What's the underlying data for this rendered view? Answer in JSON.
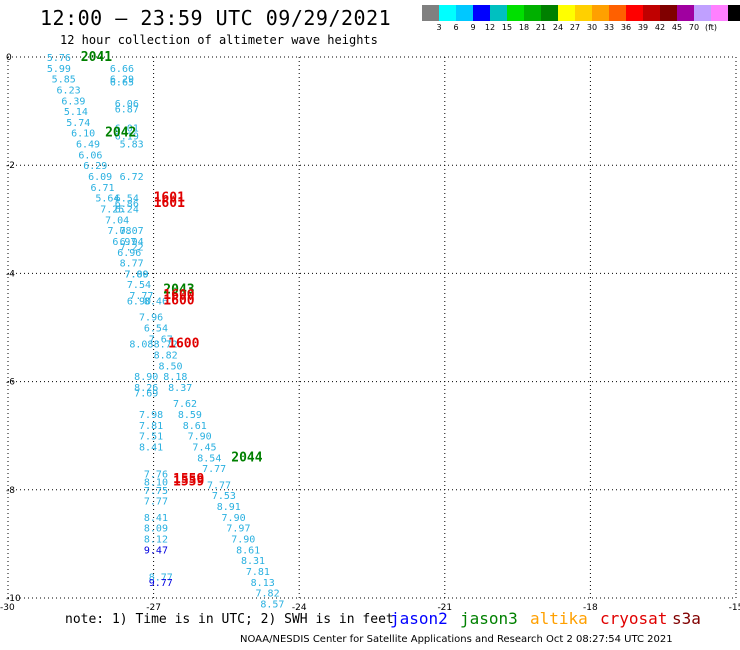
{
  "title": "12:00 — 23:59 UTC 09/29/2021",
  "subtitle": "12 hour collection of altimeter wave heights",
  "colorbar": {
    "colors": [
      "#808080",
      "#00ffff",
      "#00c8ff",
      "#0000ff",
      "#00c0c0",
      "#00e000",
      "#00b000",
      "#008000",
      "#ffff00",
      "#ffd000",
      "#ffa000",
      "#ff6000",
      "#ff0000",
      "#c00000",
      "#800000",
      "#a000a0",
      "#c0a0ff",
      "#ff80ff",
      "#000000"
    ],
    "labels": [
      "3",
      "6",
      "9",
      "12",
      "15",
      "18",
      "21",
      "24",
      "27",
      "30",
      "33",
      "36",
      "39",
      "42",
      "45",
      "70",
      "(ft)"
    ]
  },
  "map": {
    "lon_ticks": [
      "-30",
      "-27",
      "-24",
      "-21",
      "-18",
      "-15"
    ],
    "lat_ticks": [
      "0",
      "-2",
      "-4",
      "-6",
      "-8",
      "-10"
    ],
    "lon_range": [
      -30,
      -15
    ],
    "lat_range": [
      -10,
      0
    ]
  },
  "observations": [
    {
      "lon": -29.2,
      "lat": 0.0,
      "v": "5.76",
      "c": "#29b0e0"
    },
    {
      "lon": -29.2,
      "lat": -0.2,
      "v": "5.99",
      "c": "#29b0e0"
    },
    {
      "lon": -29.1,
      "lat": -0.4,
      "v": "5.85",
      "c": "#29b0e0"
    },
    {
      "lon": -29.0,
      "lat": -0.6,
      "v": "6.23",
      "c": "#29b0e0"
    },
    {
      "lon": -28.9,
      "lat": -0.8,
      "v": "6.39",
      "c": "#29b0e0"
    },
    {
      "lon": -28.85,
      "lat": -1.0,
      "v": "5.14",
      "c": "#29b0e0"
    },
    {
      "lon": -28.8,
      "lat": -1.2,
      "v": "5.74",
      "c": "#29b0e0"
    },
    {
      "lon": -28.7,
      "lat": -1.4,
      "v": "6.10",
      "c": "#29b0e0"
    },
    {
      "lon": -28.6,
      "lat": -1.6,
      "v": "6.49",
      "c": "#29b0e0"
    },
    {
      "lon": -28.55,
      "lat": -1.8,
      "v": "6.06",
      "c": "#29b0e0"
    },
    {
      "lon": -28.45,
      "lat": -2.0,
      "v": "6.29",
      "c": "#29b0e0"
    },
    {
      "lon": -28.35,
      "lat": -2.2,
      "v": "6.09",
      "c": "#29b0e0"
    },
    {
      "lon": -28.3,
      "lat": -2.4,
      "v": "6.71",
      "c": "#29b0e0"
    },
    {
      "lon": -28.2,
      "lat": -2.6,
      "v": "5.64",
      "c": "#29b0e0"
    },
    {
      "lon": -28.1,
      "lat": -2.8,
      "v": "7.25",
      "c": "#29b0e0"
    },
    {
      "lon": -28.0,
      "lat": -3.0,
      "v": "7.04",
      "c": "#29b0e0"
    },
    {
      "lon": -27.95,
      "lat": -3.2,
      "v": "7.08",
      "c": "#29b0e0"
    },
    {
      "lon": -27.85,
      "lat": -3.4,
      "v": "6.97",
      "c": "#29b0e0"
    },
    {
      "lon": -27.75,
      "lat": -3.6,
      "v": "6.96",
      "c": "#29b0e0"
    },
    {
      "lon": -27.7,
      "lat": -3.8,
      "v": "8.77",
      "c": "#29b0e0"
    },
    {
      "lon": -27.6,
      "lat": -4.0,
      "v": "7.80",
      "c": "#29b0e0"
    },
    {
      "lon": -27.55,
      "lat": -4.2,
      "v": "7.54",
      "c": "#29b0e0"
    },
    {
      "lon": -27.5,
      "lat": -4.4,
      "v": "7.77",
      "c": "#29b0e0"
    },
    {
      "lon": -27.55,
      "lat": -4.5,
      "v": "6.90",
      "c": "#29b0e0"
    },
    {
      "lon": -27.3,
      "lat": -4.8,
      "v": "7.96",
      "c": "#29b0e0"
    },
    {
      "lon": -27.2,
      "lat": -5.0,
      "v": "6.54",
      "c": "#29b0e0"
    },
    {
      "lon": -27.1,
      "lat": -5.2,
      "v": "7.67",
      "c": "#29b0e0"
    },
    {
      "lon": -27.5,
      "lat": -5.3,
      "v": "8.08",
      "c": "#29b0e0"
    },
    {
      "lon": -27.0,
      "lat": -5.5,
      "v": "8.82",
      "c": "#29b0e0"
    },
    {
      "lon": -26.9,
      "lat": -5.7,
      "v": "8.50",
      "c": "#29b0e0"
    },
    {
      "lon": -26.8,
      "lat": -5.9,
      "v": "8.18",
      "c": "#29b0e0"
    },
    {
      "lon": -27.4,
      "lat": -5.9,
      "v": "8.90",
      "c": "#29b0e0"
    },
    {
      "lon": -26.7,
      "lat": -6.1,
      "v": "8.37",
      "c": "#29b0e0"
    },
    {
      "lon": -27.4,
      "lat": -6.1,
      "v": "8.26",
      "c": "#29b0e0"
    },
    {
      "lon": -27.4,
      "lat": -6.2,
      "v": "7.69",
      "c": "#29b0e0"
    },
    {
      "lon": -26.6,
      "lat": -6.4,
      "v": "7.62",
      "c": "#29b0e0"
    },
    {
      "lon": -26.5,
      "lat": -6.6,
      "v": "8.59",
      "c": "#29b0e0"
    },
    {
      "lon": -27.3,
      "lat": -6.6,
      "v": "7.98",
      "c": "#29b0e0"
    },
    {
      "lon": -26.4,
      "lat": -6.8,
      "v": "8.61",
      "c": "#29b0e0"
    },
    {
      "lon": -27.3,
      "lat": -6.8,
      "v": "7.81",
      "c": "#29b0e0"
    },
    {
      "lon": -26.3,
      "lat": -7.0,
      "v": "7.90",
      "c": "#29b0e0"
    },
    {
      "lon": -27.3,
      "lat": -7.0,
      "v": "7.51",
      "c": "#29b0e0"
    },
    {
      "lon": -26.2,
      "lat": -7.2,
      "v": "7.45",
      "c": "#29b0e0"
    },
    {
      "lon": -27.3,
      "lat": -7.2,
      "v": "8.41",
      "c": "#29b0e0"
    },
    {
      "lon": -26.1,
      "lat": -7.4,
      "v": "8.54",
      "c": "#29b0e0"
    },
    {
      "lon": -26.0,
      "lat": -7.6,
      "v": "7.77",
      "c": "#29b0e0"
    },
    {
      "lon": -27.2,
      "lat": -7.7,
      "v": "7.76",
      "c": "#29b0e0"
    },
    {
      "lon": -27.2,
      "lat": -7.85,
      "v": "8.10",
      "c": "#29b0e0"
    },
    {
      "lon": -25.9,
      "lat": -7.9,
      "v": "7.77",
      "c": "#29b0e0"
    },
    {
      "lon": -27.2,
      "lat": -8.0,
      "v": "7.75",
      "c": "#29b0e0"
    },
    {
      "lon": -25.8,
      "lat": -8.1,
      "v": "7.53",
      "c": "#29b0e0"
    },
    {
      "lon": -27.2,
      "lat": -8.2,
      "v": "7.77",
      "c": "#29b0e0"
    },
    {
      "lon": -25.7,
      "lat": -8.3,
      "v": "8.91",
      "c": "#29b0e0"
    },
    {
      "lon": -25.6,
      "lat": -8.5,
      "v": "7.90",
      "c": "#29b0e0"
    },
    {
      "lon": -27.2,
      "lat": -8.5,
      "v": "8.41",
      "c": "#29b0e0"
    },
    {
      "lon": -25.5,
      "lat": -8.7,
      "v": "7.97",
      "c": "#29b0e0"
    },
    {
      "lon": -27.2,
      "lat": -8.7,
      "v": "8.09",
      "c": "#29b0e0"
    },
    {
      "lon": -25.4,
      "lat": -8.9,
      "v": "7.90",
      "c": "#29b0e0"
    },
    {
      "lon": -27.2,
      "lat": -8.9,
      "v": "8.12",
      "c": "#29b0e0"
    },
    {
      "lon": -27.2,
      "lat": -9.1,
      "v": "9.47",
      "c": "#0000e0"
    },
    {
      "lon": -25.3,
      "lat": -9.1,
      "v": "8.61",
      "c": "#29b0e0"
    },
    {
      "lon": -25.2,
      "lat": -9.3,
      "v": "8.31",
      "c": "#29b0e0"
    },
    {
      "lon": -25.1,
      "lat": -9.5,
      "v": "7.81",
      "c": "#29b0e0"
    },
    {
      "lon": -27.1,
      "lat": -9.6,
      "v": "8.77",
      "c": "#29b0e0"
    },
    {
      "lon": -27.1,
      "lat": -9.7,
      "v": "9.77",
      "c": "#0000e0"
    },
    {
      "lon": -25.0,
      "lat": -9.7,
      "v": "8.13",
      "c": "#29b0e0"
    },
    {
      "lon": -24.9,
      "lat": -9.9,
      "v": "7.82",
      "c": "#29b0e0"
    },
    {
      "lon": -24.8,
      "lat": -10.1,
      "v": "8.57",
      "c": "#29b0e0"
    },
    {
      "lon": -27.9,
      "lat": -0.2,
      "v": "6.66",
      "c": "#29b0e0"
    },
    {
      "lon": -27.9,
      "lat": -0.4,
      "v": "6.29",
      "c": "#29b0e0"
    },
    {
      "lon": -27.9,
      "lat": -0.45,
      "v": "6.65",
      "c": "#29b0e0"
    },
    {
      "lon": -27.8,
      "lat": -0.85,
      "v": "6.06",
      "c": "#29b0e0"
    },
    {
      "lon": -27.8,
      "lat": -0.95,
      "v": "6.87",
      "c": "#29b0e0"
    },
    {
      "lon": -27.8,
      "lat": -1.3,
      "v": "6.01",
      "c": "#29b0e0"
    },
    {
      "lon": -27.8,
      "lat": -1.45,
      "v": "6.19",
      "c": "#29b0e0"
    },
    {
      "lon": -27.7,
      "lat": -1.6,
      "v": "5.83",
      "c": "#29b0e0"
    },
    {
      "lon": -27.7,
      "lat": -2.2,
      "v": "6.72",
      "c": "#29b0e0"
    },
    {
      "lon": -27.8,
      "lat": -2.6,
      "v": "6.54",
      "c": "#29b0e0"
    },
    {
      "lon": -27.8,
      "lat": -2.7,
      "v": "6.86",
      "c": "#29b0e0"
    },
    {
      "lon": -27.8,
      "lat": -2.8,
      "v": "6.24",
      "c": "#29b0e0"
    },
    {
      "lon": -27.7,
      "lat": -3.2,
      "v": "7.07",
      "c": "#29b0e0"
    },
    {
      "lon": -27.7,
      "lat": -3.4,
      "v": "6.94",
      "c": "#29b0e0"
    },
    {
      "lon": -27.7,
      "lat": -3.5,
      "v": "7.22",
      "c": "#29b0e0"
    },
    {
      "lon": -27.6,
      "lat": -4.0,
      "v": "7.09",
      "c": "#29b0e0"
    },
    {
      "lon": -27.2,
      "lat": -4.5,
      "v": "8.46",
      "c": "#29b0e0"
    },
    {
      "lon": -27.0,
      "lat": -5.3,
      "v": "8.72",
      "c": "#29b0e0"
    },
    {
      "lon": -28.5,
      "lat": 0.0,
      "v": "2041",
      "c": "#008000",
      "big": true
    },
    {
      "lon": -28.0,
      "lat": -1.4,
      "v": "2042",
      "c": "#008000",
      "big": true
    },
    {
      "lon": -27.0,
      "lat": -2.6,
      "v": "1601",
      "c": "#e00000",
      "big": true
    },
    {
      "lon": -27.0,
      "lat": -2.7,
      "v": "1601",
      "c": "#e00000",
      "big": true
    },
    {
      "lon": -26.8,
      "lat": -4.3,
      "v": "2043",
      "c": "#008000",
      "big": true
    },
    {
      "lon": -26.8,
      "lat": -4.4,
      "v": "1600",
      "c": "#e00000",
      "big": true
    },
    {
      "lon": -26.8,
      "lat": -4.5,
      "v": "1600",
      "c": "#e00000",
      "big": true
    },
    {
      "lon": -26.7,
      "lat": -5.3,
      "v": "1600",
      "c": "#e00000",
      "big": true
    },
    {
      "lon": -25.4,
      "lat": -7.4,
      "v": "2044",
      "c": "#008000",
      "big": true
    },
    {
      "lon": -26.6,
      "lat": -7.8,
      "v": "1559",
      "c": "#e00000",
      "big": true
    },
    {
      "lon": -26.6,
      "lat": -7.85,
      "v": "1559",
      "c": "#e00000",
      "big": true
    }
  ],
  "note": "note:  1) Time is in UTC; 2) SWH is in feet",
  "satellites": [
    {
      "name": "jason2",
      "color": "#0000ff"
    },
    {
      "name": "jason3",
      "color": "#008000"
    },
    {
      "name": "altika",
      "color": "#ffa000"
    },
    {
      "name": "cryosat",
      "color": "#e00000"
    },
    {
      "name": "s3a",
      "color": "#800000"
    }
  ],
  "footer": "NOAA/NESDIS Center for Satellite Applications and Research    Oct  2 08:27:54 UTC 2021"
}
